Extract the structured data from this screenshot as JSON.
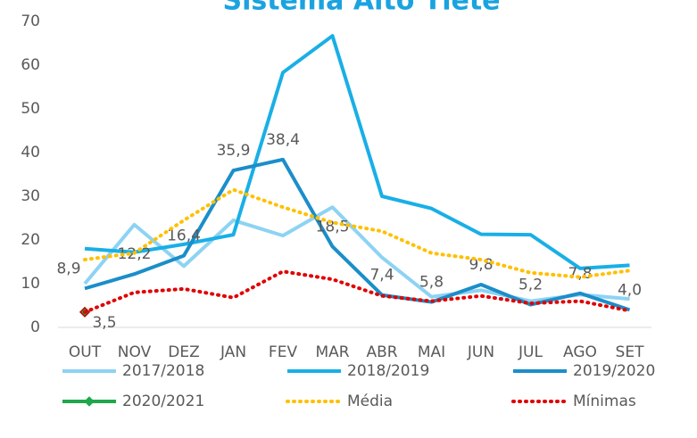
{
  "chart_data": {
    "type": "line",
    "title": "Sistema Alto Tietê",
    "categories": [
      "OUT",
      "NOV",
      "DEZ",
      "JAN",
      "FEV",
      "MAR",
      "ABR",
      "MAI",
      "JUN",
      "JUL",
      "AGO",
      "SET"
    ],
    "ylim": [
      0,
      70
    ],
    "yticks": [
      0,
      10,
      20,
      30,
      40,
      50,
      60,
      70
    ],
    "series": [
      {
        "name": "2017/2018",
        "color": "#8dd3f3",
        "style": "solid",
        "values": [
          10,
          23.5,
          14,
          24.5,
          21,
          27.5,
          16,
          7,
          8.5,
          6,
          7.5,
          6.5
        ]
      },
      {
        "name": "2018/2019",
        "color": "#19afe6",
        "style": "solid",
        "values": [
          18,
          17.2,
          19,
          21.2,
          58.3,
          66.7,
          30,
          27.2,
          21.3,
          21.2,
          13.5,
          14.2
        ]
      },
      {
        "name": "2019/2020",
        "color": "#1b8ec9",
        "style": "solid",
        "values": [
          8.9,
          12.2,
          16.4,
          35.9,
          38.4,
          18.5,
          7.4,
          5.8,
          9.8,
          5.2,
          7.8,
          4.0
        ],
        "value_labels": [
          "8,9",
          "12,2",
          "16,4",
          "35,9",
          "38,4",
          "18,5",
          "7,4",
          "5,8",
          "9,8",
          "5,2",
          "7,8",
          "4,0"
        ]
      },
      {
        "name": "2020/2021",
        "color": "#1fa84a",
        "style": "marker",
        "values": [
          3.5,
          null,
          null,
          null,
          null,
          null,
          null,
          null,
          null,
          null,
          null,
          null
        ],
        "value_labels": [
          "3,5",
          null,
          null,
          null,
          null,
          null,
          null,
          null,
          null,
          null,
          null,
          null
        ]
      },
      {
        "name": "Média",
        "color": "#ffc000",
        "style": "dotted",
        "values": [
          15.5,
          17,
          24.5,
          31.5,
          27.5,
          24,
          22,
          17,
          15.5,
          12.5,
          11.5,
          13
        ]
      },
      {
        "name": "Mínimas",
        "color": "#e00000",
        "style": "dotted",
        "values": [
          3.5,
          8,
          8.8,
          6.8,
          12.8,
          11,
          7.2,
          6,
          7.2,
          5.5,
          6,
          3.8
        ]
      }
    ]
  }
}
